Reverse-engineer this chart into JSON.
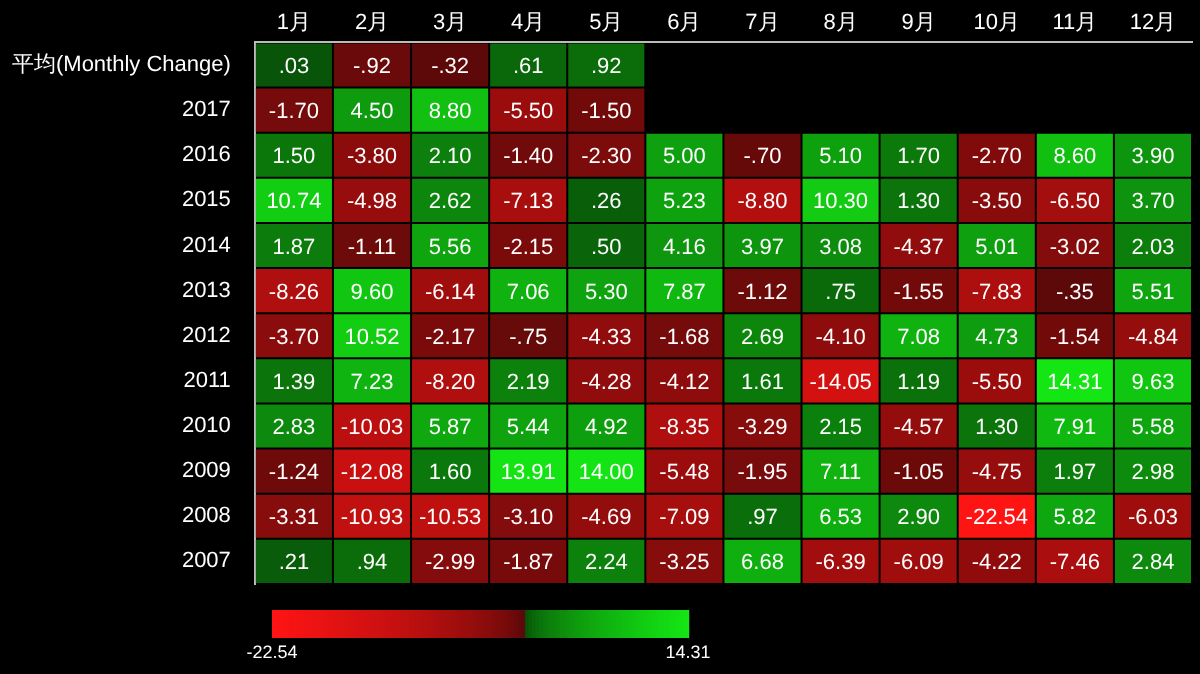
{
  "chart_data": {
    "type": "heatmap",
    "categories": [
      "1月",
      "2月",
      "3月",
      "4月",
      "5月",
      "6月",
      "7月",
      "8月",
      "9月",
      "10月",
      "11月",
      "12月"
    ],
    "y_categories": [
      "平均(Monthly Change)",
      "2017",
      "2016",
      "2015",
      "2014",
      "2013",
      "2012",
      "2011",
      "2010",
      "2009",
      "2008",
      "2007"
    ],
    "cells": [
      [
        0.03,
        -0.92,
        -0.32,
        0.61,
        0.92,
        null,
        null,
        null,
        null,
        null,
        null,
        null
      ],
      [
        -1.7,
        4.5,
        8.8,
        -5.5,
        -1.5,
        null,
        null,
        null,
        null,
        null,
        null,
        null
      ],
      [
        1.5,
        -3.8,
        2.1,
        -1.4,
        -2.3,
        5.0,
        -0.7,
        5.1,
        1.7,
        -2.7,
        8.6,
        3.9
      ],
      [
        10.74,
        -4.98,
        2.62,
        -7.13,
        0.26,
        5.23,
        -8.8,
        10.3,
        1.3,
        -3.5,
        -6.5,
        3.7
      ],
      [
        1.87,
        -1.11,
        5.56,
        -2.15,
        0.5,
        4.16,
        3.97,
        3.08,
        -4.37,
        5.01,
        -3.02,
        2.03
      ],
      [
        -8.26,
        9.6,
        -6.14,
        7.06,
        5.3,
        7.87,
        -1.12,
        0.75,
        -1.55,
        -7.83,
        -0.35,
        5.51
      ],
      [
        -3.7,
        10.52,
        -2.17,
        -0.75,
        -4.33,
        -1.68,
        2.69,
        -4.1,
        7.08,
        4.73,
        -1.54,
        -4.84
      ],
      [
        1.39,
        7.23,
        -8.2,
        2.19,
        -4.28,
        -4.12,
        1.61,
        -14.05,
        1.19,
        -5.5,
        14.31,
        9.63
      ],
      [
        2.83,
        -10.03,
        5.87,
        5.44,
        4.92,
        -8.35,
        -3.29,
        2.15,
        -4.57,
        1.3,
        7.91,
        5.58
      ],
      [
        -1.24,
        -12.08,
        1.6,
        13.91,
        14.0,
        -5.48,
        -1.95,
        7.11,
        -1.05,
        -4.75,
        1.97,
        2.98
      ],
      [
        -3.31,
        -10.93,
        -10.53,
        -3.1,
        -4.69,
        -7.09,
        0.97,
        6.53,
        2.9,
        -22.54,
        5.82,
        -6.03
      ],
      [
        0.21,
        0.94,
        -2.99,
        -1.87,
        2.24,
        -3.25,
        6.68,
        -6.39,
        -6.09,
        -4.22,
        -7.46,
        2.84
      ]
    ],
    "cell_labels": [
      [
        ".03",
        "-.92",
        "-.32",
        ".61",
        ".92",
        null,
        null,
        null,
        null,
        null,
        null,
        null
      ],
      [
        "-1.70",
        "4.50",
        "8.80",
        "-5.50",
        "-1.50",
        null,
        null,
        null,
        null,
        null,
        null,
        null
      ],
      [
        "1.50",
        "-3.80",
        "2.10",
        "-1.40",
        "-2.30",
        "5.00",
        "-.70",
        "5.10",
        "1.70",
        "-2.70",
        "8.60",
        "3.90"
      ],
      [
        "10.74",
        "-4.98",
        "2.62",
        "-7.13",
        ".26",
        "5.23",
        "-8.80",
        "10.30",
        "1.30",
        "-3.50",
        "-6.50",
        "3.70"
      ],
      [
        "1.87",
        "-1.11",
        "5.56",
        "-2.15",
        ".50",
        "4.16",
        "3.97",
        "3.08",
        "-4.37",
        "5.01",
        "-3.02",
        "2.03"
      ],
      [
        "-8.26",
        "9.60",
        "-6.14",
        "7.06",
        "5.30",
        "7.87",
        "-1.12",
        ".75",
        "-1.55",
        "-7.83",
        "-.35",
        "5.51"
      ],
      [
        "-3.70",
        "10.52",
        "-2.17",
        "-.75",
        "-4.33",
        "-1.68",
        "2.69",
        "-4.10",
        "7.08",
        "4.73",
        "-1.54",
        "-4.84"
      ],
      [
        "1.39",
        "7.23",
        "-8.20",
        "2.19",
        "-4.28",
        "-4.12",
        "1.61",
        "-14.05",
        "1.19",
        "-5.50",
        "14.31",
        "9.63"
      ],
      [
        "2.83",
        "-10.03",
        "5.87",
        "5.44",
        "4.92",
        "-8.35",
        "-3.29",
        "2.15",
        "-4.57",
        "1.30",
        "7.91",
        "5.58"
      ],
      [
        "-1.24",
        "-12.08",
        "1.60",
        "13.91",
        "14.00",
        "-5.48",
        "-1.95",
        "7.11",
        "-1.05",
        "-4.75",
        "1.97",
        "2.98"
      ],
      [
        "-3.31",
        "-10.93",
        "-10.53",
        "-3.10",
        "-4.69",
        "-7.09",
        ".97",
        "6.53",
        "2.90",
        "-22.54",
        "5.82",
        "-6.03"
      ],
      [
        ".21",
        ".94",
        "-2.99",
        "-1.87",
        "2.24",
        "-3.25",
        "6.68",
        "-6.39",
        "-6.09",
        "-4.22",
        "-7.46",
        "2.84"
      ]
    ],
    "clim": [
      -22.54,
      14.31
    ],
    "cticks": [
      -22.54,
      14.31
    ]
  }
}
